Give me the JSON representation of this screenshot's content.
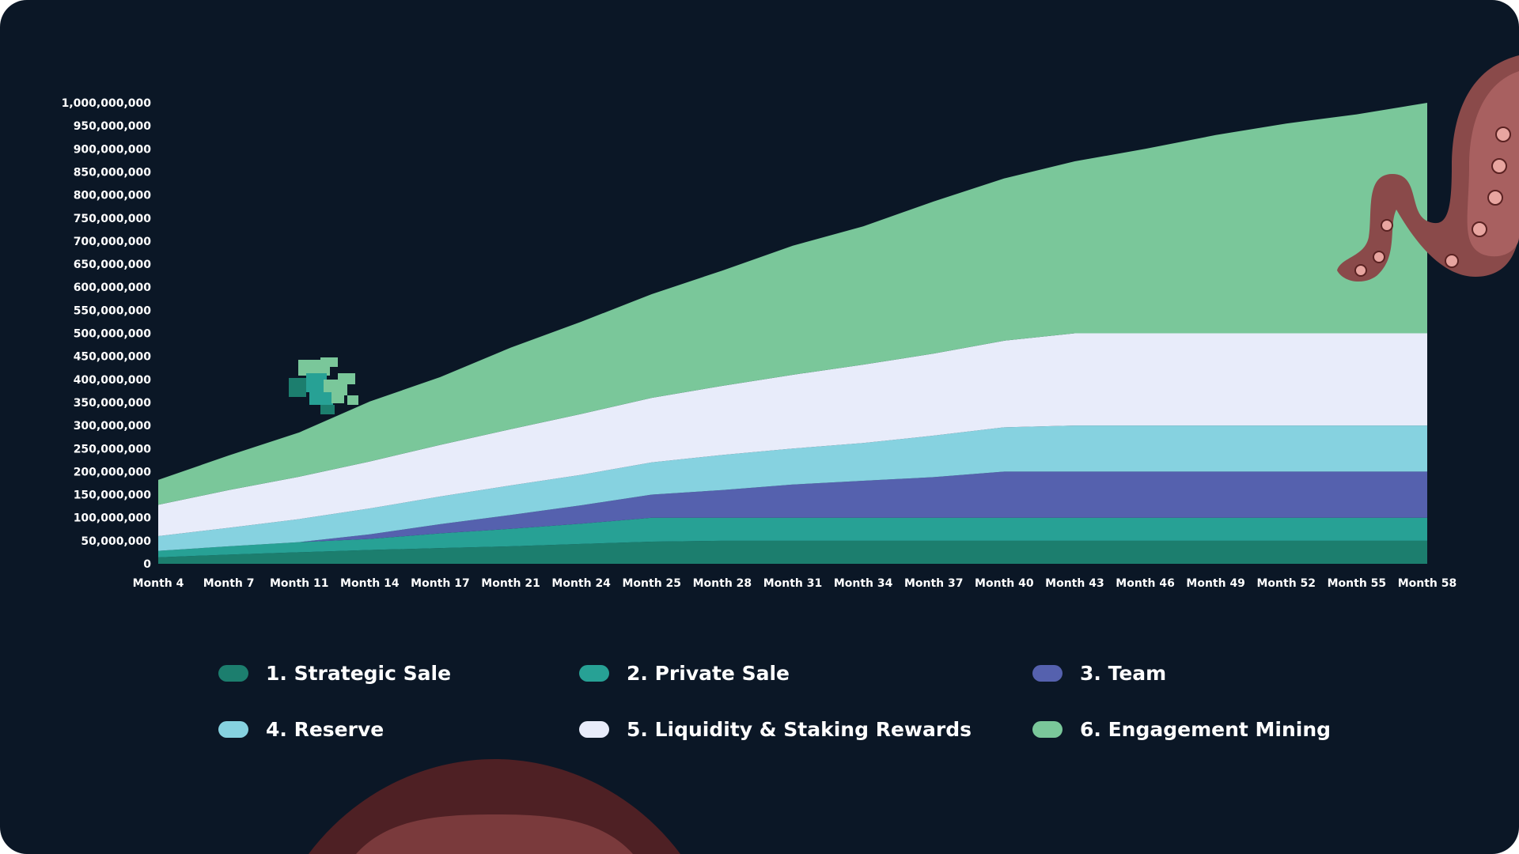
{
  "chart_data": {
    "type": "area",
    "stacked": true,
    "categories": [
      "Month 4",
      "Month 7",
      "Month 11",
      "Month 14",
      "Month 17",
      "Month 21",
      "Month 24",
      "Month 25",
      "Month 28",
      "Month 31",
      "Month 34",
      "Month 37",
      "Month 40",
      "Month 43",
      "Month 46",
      "Month 49",
      "Month 52",
      "Month 55",
      "Month 58"
    ],
    "yticks": [
      0,
      50000000,
      100000000,
      150000000,
      200000000,
      250000000,
      300000000,
      350000000,
      400000000,
      450000000,
      500000000,
      550000000,
      600000000,
      650000000,
      700000000,
      750000000,
      800000000,
      850000000,
      900000000,
      950000000,
      1000000000
    ],
    "ytick_labels": [
      "0",
      "50,000,000",
      "100,000,000",
      "150,000,000",
      "200,000,000",
      "250,000,000",
      "300,000,000",
      "350,000,000",
      "400,000,000",
      "450,000,000",
      "500,000,000",
      "550,000,000",
      "600,000,000",
      "650,000,000",
      "700,000,000",
      "750,000,000",
      "800,000,000",
      "850,000,000",
      "900,000,000",
      "950,000,000",
      "1,000,000,000"
    ],
    "ylim": [
      0,
      1000000000
    ],
    "grid": false,
    "legend_position": "bottom",
    "series": [
      {
        "name": "1. Strategic Sale",
        "color": "#1c7e6e",
        "values": [
          14000000,
          20000000,
          25000000,
          30000000,
          34000000,
          38000000,
          43000000,
          48000000,
          50000000,
          50000000,
          50000000,
          50000000,
          50000000,
          50000000,
          50000000,
          50000000,
          50000000,
          50000000,
          50000000
        ]
      },
      {
        "name": "2. Private Sale",
        "color": "#27a195",
        "values": [
          14000000,
          18000000,
          22000000,
          24000000,
          32000000,
          38000000,
          44000000,
          52000000,
          50000000,
          50000000,
          50000000,
          50000000,
          50000000,
          50000000,
          50000000,
          50000000,
          50000000,
          50000000,
          50000000
        ]
      },
      {
        "name": "3. Team",
        "color": "#5561ae",
        "values": [
          0,
          0,
          0,
          10000000,
          20000000,
          30000000,
          40000000,
          50000000,
          60000000,
          72000000,
          80000000,
          88000000,
          100000000,
          100000000,
          100000000,
          100000000,
          100000000,
          100000000,
          100000000
        ]
      },
      {
        "name": "4. Reserve",
        "color": "#86d2e0",
        "values": [
          32000000,
          40000000,
          50000000,
          56000000,
          60000000,
          64000000,
          66000000,
          70000000,
          76000000,
          78000000,
          82000000,
          90000000,
          96000000,
          100000000,
          100000000,
          100000000,
          100000000,
          100000000,
          100000000
        ]
      },
      {
        "name": "5. Liquidity & Staking Rewards",
        "color": "#e8ecfa",
        "values": [
          68000000,
          82000000,
          92000000,
          102000000,
          112000000,
          122000000,
          132000000,
          140000000,
          150000000,
          160000000,
          170000000,
          178000000,
          188000000,
          200000000,
          200000000,
          200000000,
          200000000,
          200000000,
          200000000
        ]
      },
      {
        "name": "6. Engagement Mining",
        "color": "#7ac79a",
        "values": [
          54000000,
          75000000,
          96000000,
          130000000,
          147000000,
          177000000,
          200000000,
          225000000,
          250000000,
          280000000,
          300000000,
          330000000,
          352000000,
          373000000,
          400000000,
          430000000,
          455000000,
          475000000,
          500000000
        ]
      }
    ]
  }
}
